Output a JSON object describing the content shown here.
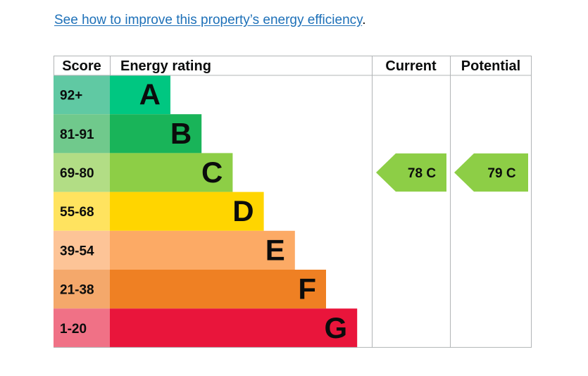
{
  "improve_link": {
    "text": "See how to improve this property’s energy efficiency",
    "trailing": "."
  },
  "colors": {
    "link": "#1d70b8",
    "border": "#b1b4b6",
    "text": "#0b0c0c"
  },
  "chart_data": {
    "type": "bar",
    "headers": {
      "score": "Score",
      "rating": "Energy rating",
      "current": "Current",
      "potential": "Potential"
    },
    "bands": [
      {
        "letter": "A",
        "range": "92+",
        "color": "#00c781",
        "score_color": "#60c9a3"
      },
      {
        "letter": "B",
        "range": "81-91",
        "color": "#19b459",
        "score_color": "#70c98c"
      },
      {
        "letter": "C",
        "range": "69-80",
        "color": "#8dce46",
        "score_color": "#b2dd85"
      },
      {
        "letter": "D",
        "range": "55-68",
        "color": "#ffd500",
        "score_color": "#ffe35f"
      },
      {
        "letter": "E",
        "range": "39-54",
        "color": "#fcaa65",
        "score_color": "#fdc497"
      },
      {
        "letter": "F",
        "range": "21-38",
        "color": "#ef8023",
        "score_color": "#f4a86b"
      },
      {
        "letter": "G",
        "range": "1-20",
        "color": "#e9153b",
        "score_color": "#f07186"
      }
    ],
    "current": {
      "value": 78,
      "band": "C",
      "label": "78 C",
      "color": "#8dce46"
    },
    "potential": {
      "value": 79,
      "band": "C",
      "label": "79 C",
      "color": "#8dce46"
    }
  }
}
